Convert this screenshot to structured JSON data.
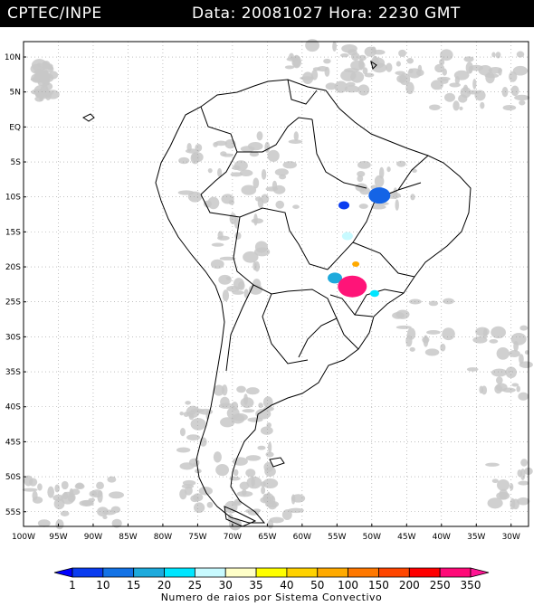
{
  "header": {
    "source": "CPTEC/INPE",
    "datetime": "Data: 20081027 Hora: 2230 GMT"
  },
  "map": {
    "lat_labels": [
      "10N",
      "5N",
      "EQ",
      "5S",
      "10S",
      "15S",
      "20S",
      "25S",
      "30S",
      "35S",
      "40S",
      "45S",
      "50S",
      "55S"
    ],
    "lon_labels": [
      "100W",
      "95W",
      "90W",
      "85W",
      "80W",
      "75W",
      "70W",
      "65W",
      "60W",
      "55W",
      "50W",
      "45W",
      "40W",
      "35W",
      "30W"
    ],
    "cloud_color": "#c8c8c8",
    "border_color": "#000000",
    "grid_color": "#9a9a9a"
  },
  "legend": {
    "title": "Numero de raios por Sistema Convectivo",
    "values": [
      "1",
      "10",
      "15",
      "20",
      "25",
      "30",
      "35",
      "40",
      "50",
      "100",
      "150",
      "200",
      "250",
      "350"
    ],
    "colors": [
      "#0000ff",
      "#0a3cf0",
      "#1473e6",
      "#1eaadc",
      "#00e6ff",
      "#c8faff",
      "#ffffc8",
      "#ffff00",
      "#ffd200",
      "#ffaa00",
      "#ff7800",
      "#ff4600",
      "#ff0000",
      "#ff0a78",
      "#ff1493"
    ]
  },
  "storm_cells": [
    {
      "lon": -48.9,
      "lat": -9.8,
      "color": "#1464e6"
    },
    {
      "lon": -54.0,
      "lat": -11.2,
      "color": "#0a3cf0"
    },
    {
      "lon": -53.5,
      "lat": -15.6,
      "color": "#c8faff"
    },
    {
      "lon": -52.3,
      "lat": -19.6,
      "color": "#ffaa00"
    },
    {
      "lon": -55.3,
      "lat": -21.6,
      "color": "#1eaadc"
    },
    {
      "lon": -52.8,
      "lat": -22.8,
      "color": "#ff1478"
    },
    {
      "lon": -49.6,
      "lat": -23.8,
      "color": "#00e6ff"
    }
  ]
}
